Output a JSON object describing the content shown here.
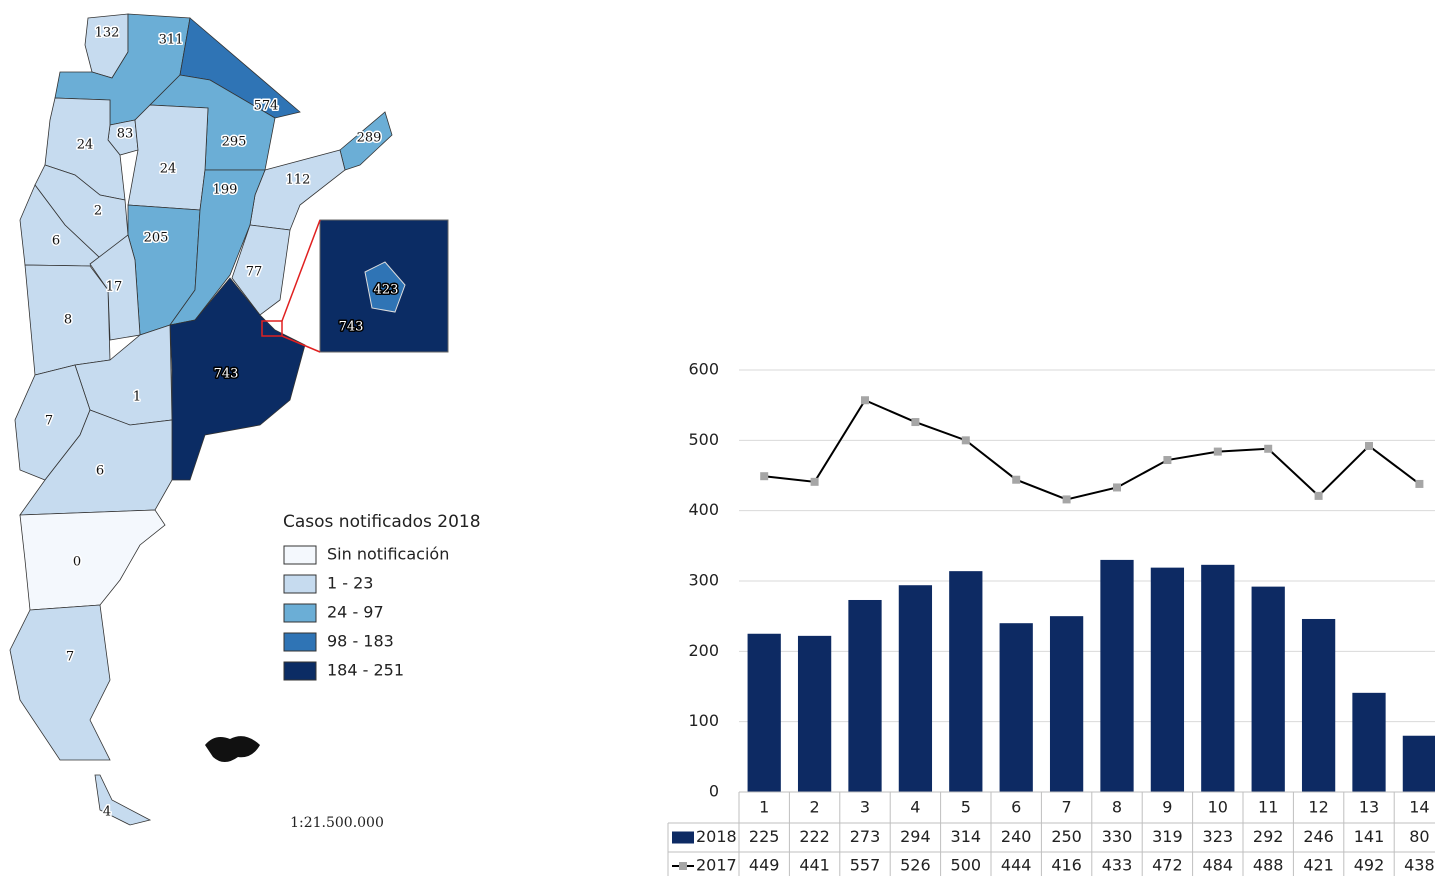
{
  "map": {
    "regions": [
      {
        "value": 132,
        "color": "#c6dbef"
      },
      {
        "value": 311,
        "color": "#6baed6"
      },
      {
        "value": 574,
        "color": "#2f74b5"
      },
      {
        "value": 295,
        "color": "#6baed6"
      },
      {
        "value": 289,
        "color": "#6baed6"
      },
      {
        "value": 112,
        "color": "#c6dbef"
      },
      {
        "value": 83,
        "color": "#c6dbef"
      },
      {
        "value": 24,
        "color": "#c6dbef"
      },
      {
        "value": 24,
        "color": "#c6dbef"
      },
      {
        "value": 2,
        "color": "#c6dbef"
      },
      {
        "value": 6,
        "color": "#c6dbef"
      },
      {
        "value": 205,
        "color": "#6baed6"
      },
      {
        "value": 199,
        "color": "#6baed6"
      },
      {
        "value": 77,
        "color": "#c6dbef"
      },
      {
        "value": 17,
        "color": "#c6dbef"
      },
      {
        "value": 8,
        "color": "#c6dbef"
      },
      {
        "value": 743,
        "color": "#0b2c64"
      },
      {
        "value": 1,
        "color": "#c6dbef"
      },
      {
        "value": 7,
        "color": "#c6dbef"
      },
      {
        "value": 6,
        "color": "#c6dbef"
      },
      {
        "value": 0,
        "color": "#f4f8fd"
      },
      {
        "value": 7,
        "color": "#c6dbef"
      },
      {
        "value": 4,
        "color": "#c6dbef"
      }
    ],
    "inset": [
      {
        "value": 743,
        "color": "#0b2c64"
      },
      {
        "value": 423,
        "color": "#2f74b5"
      }
    ],
    "legend": {
      "title": "Casos notificados 2018",
      "items": [
        {
          "label": "Sin notificación",
          "color": "#f4f8fd"
        },
        {
          "label": "1 - 23",
          "color": "#c6dbef"
        },
        {
          "label": "24 - 97",
          "color": "#6baed6"
        },
        {
          "label": "98 - 183",
          "color": "#2f74b5"
        },
        {
          "label": "184 - 251",
          "color": "#0b2c64"
        }
      ]
    },
    "scale": "1:21.500.000"
  },
  "chart_data": {
    "type": "bar_line",
    "categories": [
      "1",
      "2",
      "3",
      "4",
      "5",
      "6",
      "7",
      "8",
      "9",
      "10",
      "11",
      "12",
      "13",
      "14"
    ],
    "series": [
      {
        "name": "2018",
        "type": "bar",
        "color": "#0d2a63",
        "values": [
          225,
          222,
          273,
          294,
          314,
          240,
          250,
          330,
          319,
          323,
          292,
          246,
          141,
          80
        ]
      },
      {
        "name": "2017",
        "type": "line",
        "color": "#000000",
        "marker_color": "#a6a6a6",
        "values": [
          449,
          441,
          557,
          526,
          500,
          444,
          416,
          433,
          472,
          484,
          488,
          421,
          492,
          438
        ]
      }
    ],
    "ylim": [
      0,
      600
    ],
    "yticks": [
      0,
      100,
      200,
      300,
      400,
      500,
      600
    ],
    "grid": true,
    "data_table": true
  }
}
